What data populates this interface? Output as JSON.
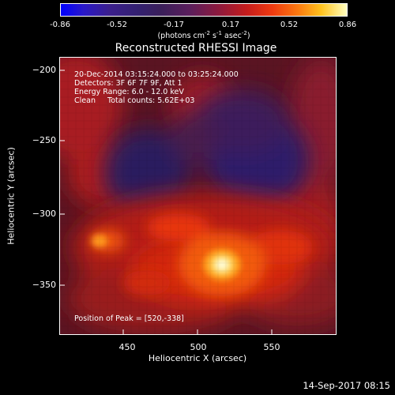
{
  "colorbar": {
    "ticks": [
      "-0.86",
      "-0.52",
      "-0.17",
      "0.17",
      "0.52",
      "0.86"
    ],
    "units_prefix": "(photons cm",
    "units_sup1": "-2",
    "units_mid1": " s",
    "units_sup2": "-1",
    "units_mid2": " asec",
    "units_sup3": "-2",
    "units_suffix": ")"
  },
  "title": "Reconstructed RHESSI Image",
  "annotations": {
    "time_range": "20-Dec-2014 03:15:24.000 to 03:25:24.000",
    "detectors": "Detectors: 3F 6F 7F 9F, Att 1",
    "energy": "Energy Range: 6.0 - 12.0 keV",
    "clean": "Clean     Total counts: 5.62E+03",
    "peak": "Position of Peak = [520,-338]"
  },
  "axes": {
    "xlabel": "Heliocentric X (arcsec)",
    "ylabel": "Heliocentric Y (arcsec)",
    "xticks": [
      "450",
      "500",
      "550"
    ],
    "yticks": [
      "−200",
      "−250",
      "−300",
      "−350"
    ]
  },
  "footer": "14-Sep-2017 08:15",
  "colors": {
    "background": "#000000",
    "foreground": "#ffffff"
  }
}
